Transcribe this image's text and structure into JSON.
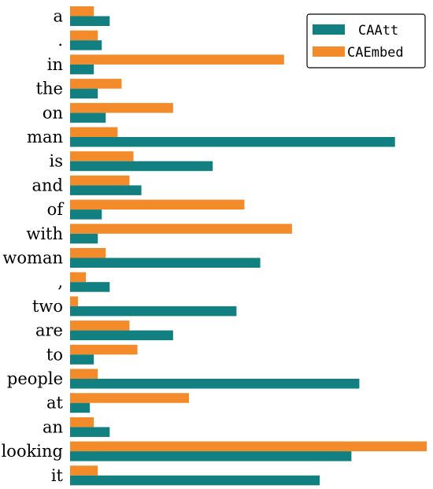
{
  "chart_data": {
    "type": "bar",
    "orientation": "horizontal",
    "categories": [
      "a",
      ".",
      "in",
      "the",
      "on",
      "man",
      "is",
      "and",
      "of",
      "with",
      "woman",
      ",",
      "two",
      "are",
      "to",
      "people",
      "at",
      "an",
      "looking",
      "it"
    ],
    "series": [
      {
        "name": "CAAtt",
        "color": "#128080",
        "values": [
          0.1,
          0.08,
          0.06,
          0.07,
          0.09,
          0.82,
          0.36,
          0.18,
          0.08,
          0.07,
          0.48,
          0.1,
          0.42,
          0.26,
          0.06,
          0.73,
          0.05,
          0.1,
          0.71,
          0.63
        ]
      },
      {
        "name": "CAEmbed",
        "color": "#F38B2B",
        "values": [
          0.06,
          0.07,
          0.54,
          0.13,
          0.26,
          0.12,
          0.16,
          0.15,
          0.44,
          0.56,
          0.09,
          0.04,
          0.02,
          0.15,
          0.17,
          0.07,
          0.3,
          0.06,
          0.9,
          0.07
        ]
      }
    ],
    "xlim": [
      0,
      0.9
    ],
    "title": "",
    "xlabel": "",
    "ylabel": "",
    "grid": false,
    "legend": "top-right"
  }
}
